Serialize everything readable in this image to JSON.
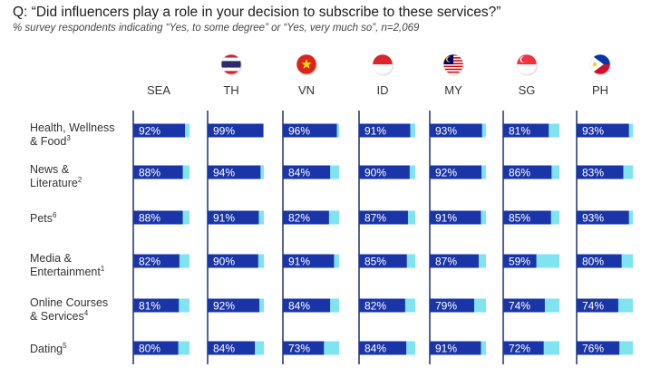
{
  "title": "Q: “Did influencers play a role in your decision to subscribe to these services?”",
  "subtitle": "% survey respondents indicating “Yes, to some degree” or “Yes, very much so”, n=2,069",
  "colors": {
    "bar_primary": "#1a35a8",
    "bar_remainder": "#7fe3f0",
    "axis_line": "#1f2e7a",
    "text": "#333333"
  },
  "flags": [
    {
      "column": "TH",
      "icon": "thailand-flag-icon"
    },
    {
      "column": "VN",
      "icon": "vietnam-flag-icon"
    },
    {
      "column": "ID",
      "icon": "indonesia-flag-icon"
    },
    {
      "column": "MY",
      "icon": "malaysia-flag-icon"
    },
    {
      "column": "SG",
      "icon": "singapore-flag-icon"
    },
    {
      "column": "PH",
      "icon": "philippines-flag-icon"
    }
  ],
  "chart_data": {
    "type": "bar",
    "orientation": "horizontal-small-multiples",
    "columns": [
      "SEA",
      "TH",
      "VN",
      "ID",
      "MY",
      "SG",
      "PH"
    ],
    "rows": [
      {
        "label": "Health, Wellness",
        "label2": "& Food",
        "sup": "3",
        "values": [
          92,
          99,
          96,
          91,
          93,
          81,
          93
        ]
      },
      {
        "label": "News &",
        "label2": "Literature",
        "sup": "2",
        "values": [
          88,
          94,
          84,
          90,
          92,
          86,
          83
        ]
      },
      {
        "label": "Pets",
        "label2": "",
        "sup": "6",
        "values": [
          88,
          91,
          82,
          87,
          91,
          85,
          93
        ]
      },
      {
        "label": "Media &",
        "label2": "Entertainment",
        "sup": "1",
        "values": [
          82,
          90,
          91,
          85,
          87,
          59,
          80
        ]
      },
      {
        "label": "Online Courses",
        "label2": "& Services",
        "sup": "4",
        "values": [
          81,
          92,
          84,
          82,
          79,
          74,
          74
        ]
      },
      {
        "label": "Dating",
        "label2": "",
        "sup": "5",
        "values": [
          80,
          84,
          73,
          84,
          91,
          72,
          76
        ]
      }
    ],
    "value_suffix": "%",
    "xlim": [
      0,
      100
    ]
  }
}
